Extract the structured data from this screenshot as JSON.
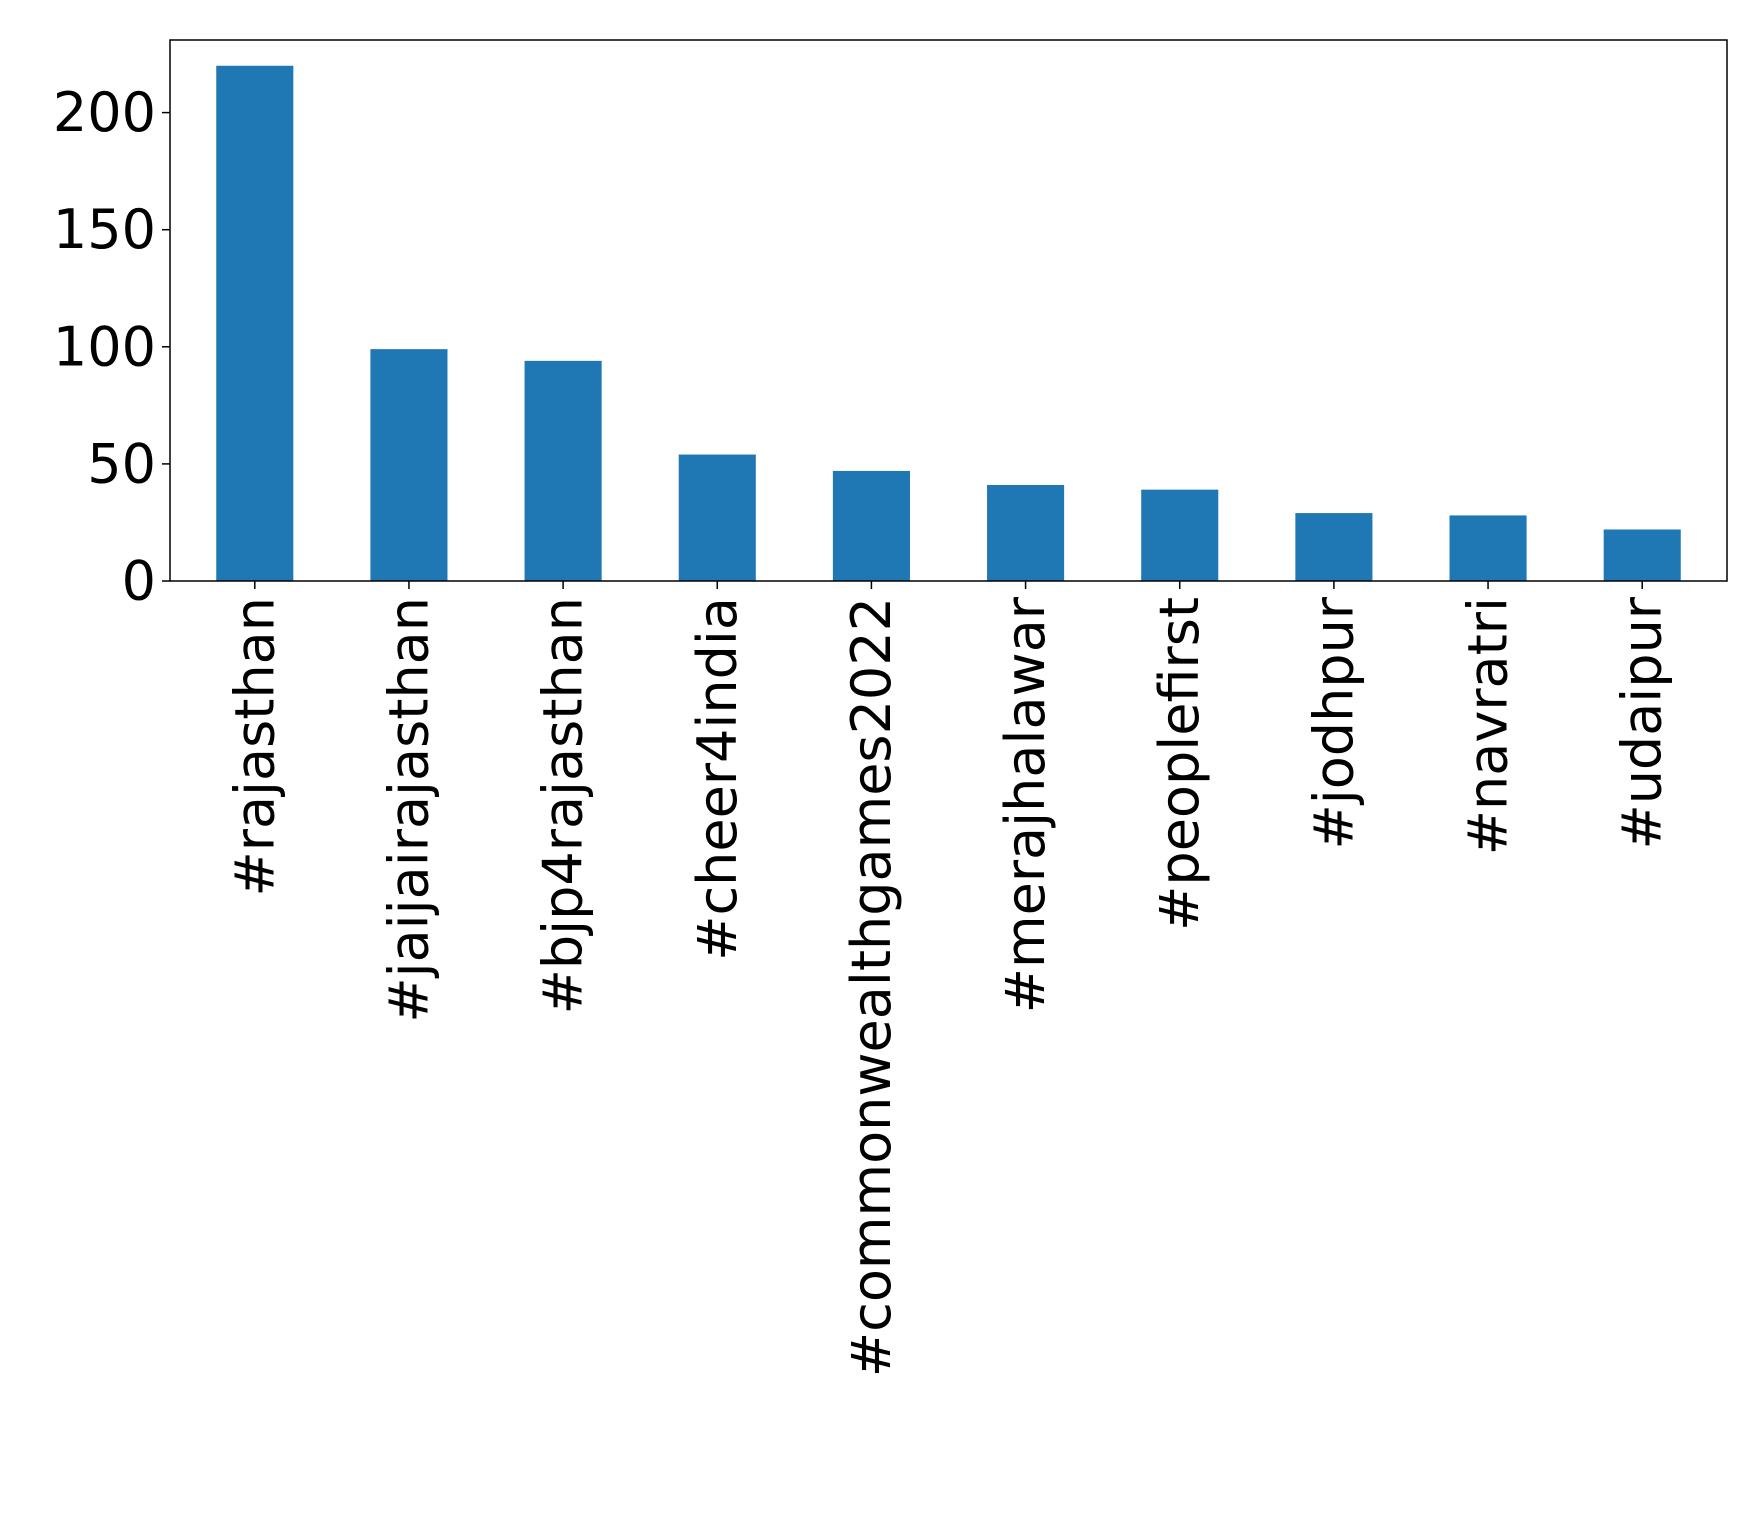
{
  "chart_data": {
    "type": "bar",
    "title": "",
    "xlabel": "",
    "ylabel": "",
    "categories": [
      "#rajasthan",
      "#jaijairajasthan",
      "#bjp4rajasthan",
      "#cheer4india",
      "#commonwealthgames2022",
      "#merajhalawar",
      "#peoplefirst",
      "#jodhpur",
      "#navratri",
      "#udaipur"
    ],
    "values": [
      220,
      99,
      94,
      54,
      47,
      41,
      39,
      29,
      28,
      22
    ],
    "ylim": [
      0,
      231
    ],
    "yticks": [
      0,
      50,
      100,
      150,
      200
    ],
    "grid": false,
    "legend": "none",
    "colors": {
      "bar": "#1f77b4",
      "axes": "#000000",
      "background": "#ffffff"
    }
  }
}
